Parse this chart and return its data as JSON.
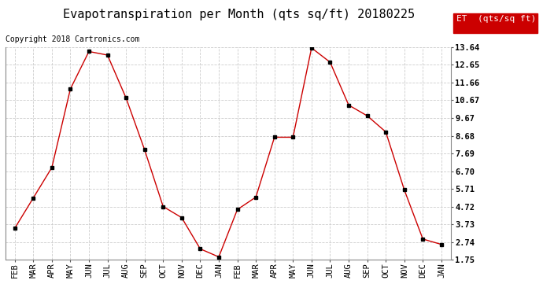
{
  "title": "Evapotranspiration per Month (qts sq/ft) 20180225",
  "copyright": "Copyright 2018 Cartronics.com",
  "legend_label": "ET  (qts/sq ft)",
  "months": [
    "FEB",
    "MAR",
    "APR",
    "MAY",
    "JUN",
    "JUL",
    "AUG",
    "SEP",
    "OCT",
    "NOV",
    "DEC",
    "JAN",
    "FEB",
    "MAR",
    "APR",
    "MAY",
    "JUN",
    "JUL",
    "AUG",
    "SEP",
    "OCT",
    "NOV",
    "DEC",
    "JAN"
  ],
  "values": [
    3.5,
    5.2,
    6.9,
    11.3,
    13.4,
    13.2,
    10.8,
    7.9,
    4.72,
    4.1,
    2.35,
    1.9,
    4.55,
    5.25,
    8.6,
    8.6,
    13.6,
    12.8,
    10.4,
    9.8,
    8.9,
    5.65,
    2.9,
    2.6
  ],
  "yticks": [
    1.75,
    2.74,
    3.73,
    4.72,
    5.71,
    6.7,
    7.69,
    8.68,
    9.67,
    10.67,
    11.66,
    12.65,
    13.64
  ],
  "ylim": [
    1.75,
    13.64
  ],
  "line_color": "#cc0000",
  "marker_color": "#000000",
  "bg_color": "#ffffff",
  "grid_color": "#cccccc",
  "legend_bg": "#cc0000",
  "legend_text_color": "#ffffff",
  "title_fontsize": 11,
  "copyright_fontsize": 7,
  "tick_fontsize": 7.5,
  "legend_fontsize": 8
}
